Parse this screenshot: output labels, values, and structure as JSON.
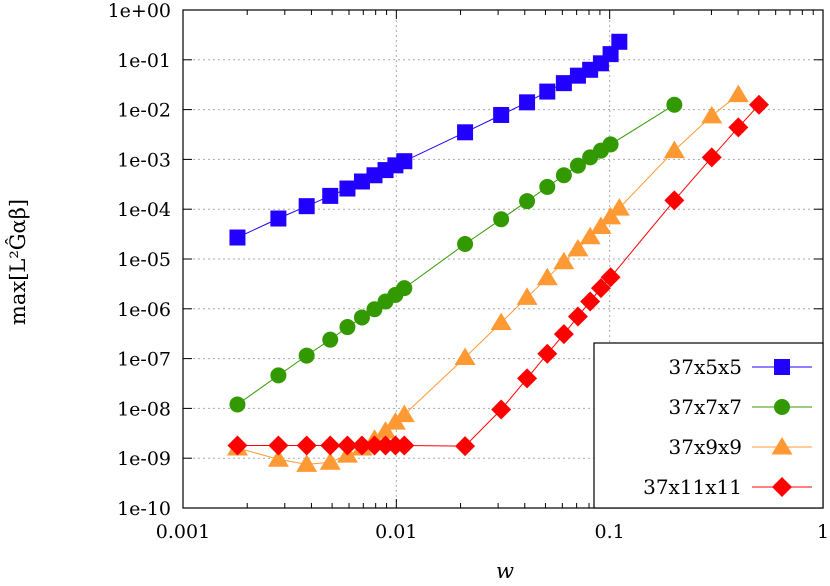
{
  "chart_data": {
    "type": "scatter",
    "xlabel": "w",
    "ylabel": "max[L²Ĝαβ]",
    "xscale": "log",
    "yscale": "log",
    "xlim": [
      0.001,
      1
    ],
    "ylim": [
      1e-10,
      1
    ],
    "x_ticks": [
      0.001,
      0.01,
      0.1,
      1
    ],
    "x_tick_labels": [
      "0.001",
      "0.01",
      "0.1",
      "1"
    ],
    "y_ticks": [
      1e-10,
      1e-09,
      1e-08,
      1e-07,
      1e-06,
      1e-05,
      0.0001,
      0.001,
      0.01,
      0.1,
      1
    ],
    "y_tick_labels": [
      "1e-10",
      "1e-09",
      "1e-08",
      "1e-07",
      "1e-06",
      "1e-05",
      "1e-04",
      "1e-03",
      "1e-02",
      "1e-01",
      "1e+00"
    ],
    "grid": true,
    "legend_position": "bottom-right",
    "series": [
      {
        "name": "37x5x5",
        "color": "#2200ff",
        "marker": "square",
        "points": [
          [
            0.0018,
            2.7e-05
          ],
          [
            0.0028,
            6.5e-05
          ],
          [
            0.0038,
            0.000115
          ],
          [
            0.0049,
            0.000185
          ],
          [
            0.0059,
            0.00026
          ],
          [
            0.0069,
            0.00036
          ],
          [
            0.0079,
            0.00048
          ],
          [
            0.0089,
            0.00061
          ],
          [
            0.0099,
            0.00076
          ],
          [
            0.0109,
            0.00092
          ],
          [
            0.021,
            0.0035
          ],
          [
            0.031,
            0.0078
          ],
          [
            0.041,
            0.014
          ],
          [
            0.051,
            0.023
          ],
          [
            0.061,
            0.034
          ],
          [
            0.071,
            0.048
          ],
          [
            0.081,
            0.063
          ],
          [
            0.091,
            0.085
          ],
          [
            0.101,
            0.13
          ],
          [
            0.111,
            0.23
          ]
        ]
      },
      {
        "name": "37x7x7",
        "color": "#339900",
        "marker": "circle",
        "points": [
          [
            0.0018,
            1.2e-08
          ],
          [
            0.0028,
            4.6e-08
          ],
          [
            0.0038,
            1.15e-07
          ],
          [
            0.0049,
            2.4e-07
          ],
          [
            0.0059,
            4.3e-07
          ],
          [
            0.0069,
            6.7e-07
          ],
          [
            0.0079,
            9.8e-07
          ],
          [
            0.0089,
            1.4e-06
          ],
          [
            0.0099,
            1.9e-06
          ],
          [
            0.0109,
            2.6e-06
          ],
          [
            0.021,
            2e-05
          ],
          [
            0.031,
            6.3e-05
          ],
          [
            0.041,
            0.000145
          ],
          [
            0.051,
            0.00028
          ],
          [
            0.061,
            0.00048
          ],
          [
            0.071,
            0.00075
          ],
          [
            0.081,
            0.0011
          ],
          [
            0.091,
            0.0015
          ],
          [
            0.101,
            0.002
          ],
          [
            0.201,
            0.0125
          ]
        ]
      },
      {
        "name": "37x9x9",
        "color": "#ff9933",
        "marker": "triangle",
        "points": [
          [
            0.0018,
            1.6e-09
          ],
          [
            0.0028,
            9.5e-10
          ],
          [
            0.0038,
            7.5e-10
          ],
          [
            0.0049,
            8.3e-10
          ],
          [
            0.0059,
            1.15e-09
          ],
          [
            0.0069,
            1.6e-09
          ],
          [
            0.0079,
            2.4e-09
          ],
          [
            0.0089,
            3.5e-09
          ],
          [
            0.0099,
            5.3e-09
          ],
          [
            0.0109,
            7.5e-09
          ],
          [
            0.021,
            1.05e-07
          ],
          [
            0.031,
            5.3e-07
          ],
          [
            0.041,
            1.7e-06
          ],
          [
            0.051,
            4.2e-06
          ],
          [
            0.061,
            8.8e-06
          ],
          [
            0.071,
            1.6e-05
          ],
          [
            0.081,
            2.8e-05
          ],
          [
            0.091,
            4.5e-05
          ],
          [
            0.101,
            7e-05
          ],
          [
            0.111,
            0.000105
          ],
          [
            0.201,
            0.0015
          ],
          [
            0.301,
            0.0075
          ],
          [
            0.401,
            0.02
          ]
        ]
      },
      {
        "name": "37x11x11",
        "color": "#ff0000",
        "marker": "diamond",
        "points": [
          [
            0.0018,
            1.8e-09
          ],
          [
            0.0028,
            1.8e-09
          ],
          [
            0.0038,
            1.8e-09
          ],
          [
            0.0049,
            1.8e-09
          ],
          [
            0.0059,
            1.8e-09
          ],
          [
            0.0069,
            1.8e-09
          ],
          [
            0.0079,
            1.8e-09
          ],
          [
            0.0089,
            1.8e-09
          ],
          [
            0.0099,
            1.8e-09
          ],
          [
            0.0109,
            1.8e-09
          ],
          [
            0.021,
            1.75e-09
          ],
          [
            0.031,
            9.5e-09
          ],
          [
            0.041,
            4e-08
          ],
          [
            0.051,
            1.25e-07
          ],
          [
            0.061,
            3.1e-07
          ],
          [
            0.071,
            7e-07
          ],
          [
            0.081,
            1.4e-06
          ],
          [
            0.091,
            2.6e-06
          ],
          [
            0.101,
            4.3e-06
          ],
          [
            0.201,
            0.00015
          ],
          [
            0.301,
            0.0011
          ],
          [
            0.401,
            0.0044
          ],
          [
            0.501,
            0.0125
          ]
        ]
      }
    ]
  }
}
